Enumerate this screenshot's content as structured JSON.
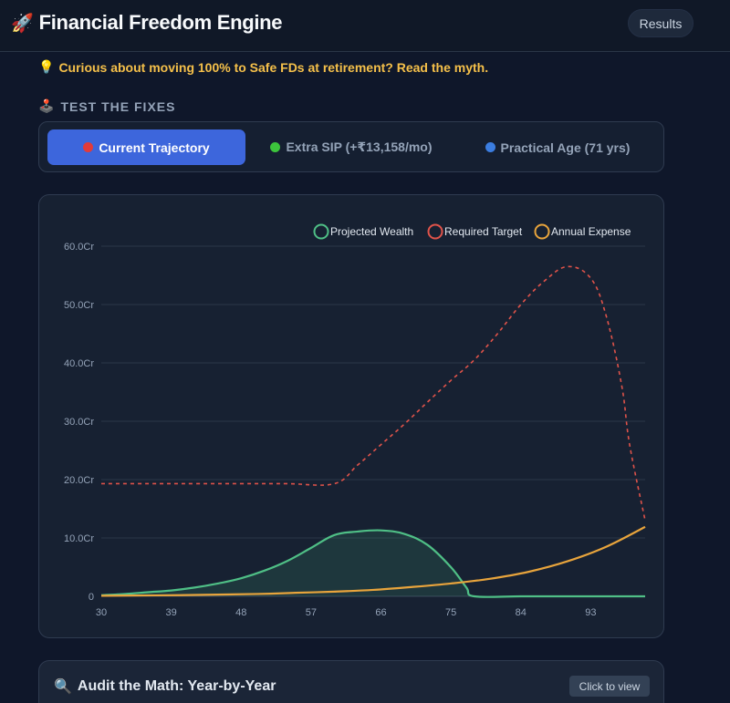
{
  "header": {
    "title": "Financial Freedom Engine",
    "logo_icon": "rocket-icon",
    "results_label": "Results"
  },
  "tip": {
    "icon": "lightbulb-icon",
    "text": "Curious about moving 100% to Safe FDs at retirement? Read the myth."
  },
  "fixes": {
    "icon": "joystick-icon",
    "label": "TEST THE FIXES",
    "tabs": [
      {
        "label": "Current Trajectory",
        "dot_color": "#e23b3b",
        "active": true
      },
      {
        "label": "Extra SIP (+₹13,158/mo)",
        "dot_color": "#3cc43c",
        "active": false
      },
      {
        "label": "Practical Age (71 yrs)",
        "dot_color": "#3b7de0",
        "active": false
      }
    ]
  },
  "colors": {
    "wealth": "#4fbf86",
    "target": "#e0534a",
    "expense": "#e8a43c",
    "accent": "#3d66dc"
  },
  "chart_data": {
    "type": "line",
    "legend_position": "top-right",
    "grid": true,
    "x_ticks": [
      "30",
      "39",
      "48",
      "57",
      "66",
      "75",
      "84",
      "93"
    ],
    "y_ticks": [
      "0",
      "10.0Cr",
      "20.0Cr",
      "30.0Cr",
      "40.0Cr",
      "50.0Cr",
      "60.0Cr"
    ],
    "xlim": [
      30,
      100
    ],
    "ylim": [
      0,
      60
    ],
    "series": [
      {
        "name": "Projected Wealth",
        "style": "solid-filled",
        "x": [
          30,
          33,
          36,
          39,
          42,
          45,
          48,
          51,
          54,
          57,
          60,
          63,
          66,
          69,
          72,
          75,
          77,
          78,
          84,
          90,
          96,
          100
        ],
        "y": [
          0.2,
          0.4,
          0.7,
          1.0,
          1.5,
          2.2,
          3.1,
          4.4,
          6.1,
          8.3,
          10.5,
          11.1,
          11.3,
          10.7,
          8.8,
          5.0,
          1.5,
          0,
          0,
          0,
          0,
          0
        ]
      },
      {
        "name": "Required Target",
        "style": "dashed",
        "x": [
          30,
          36,
          42,
          48,
          54,
          60,
          63,
          66,
          69,
          72,
          75,
          78,
          81,
          84,
          87,
          90,
          93,
          95,
          97,
          98,
          100
        ],
        "y": [
          19.3,
          19.3,
          19.3,
          19.3,
          19.3,
          19.3,
          22.5,
          26.0,
          29.5,
          33.3,
          37.0,
          40.5,
          45.0,
          50.0,
          54.0,
          56.5,
          54.5,
          48.0,
          36.0,
          26.0,
          13.0
        ]
      },
      {
        "name": "Annual Expense",
        "style": "solid",
        "x": [
          30,
          40,
          50,
          55,
          60,
          65,
          70,
          75,
          80,
          85,
          90,
          95,
          100
        ],
        "y": [
          0.1,
          0.2,
          0.4,
          0.6,
          0.8,
          1.1,
          1.6,
          2.2,
          3.0,
          4.2,
          6.0,
          8.5,
          11.9
        ]
      }
    ]
  },
  "audit": {
    "icon": "magnifier-icon",
    "title": "Audit the Math: Year-by-Year",
    "button_label": "Click to view"
  }
}
